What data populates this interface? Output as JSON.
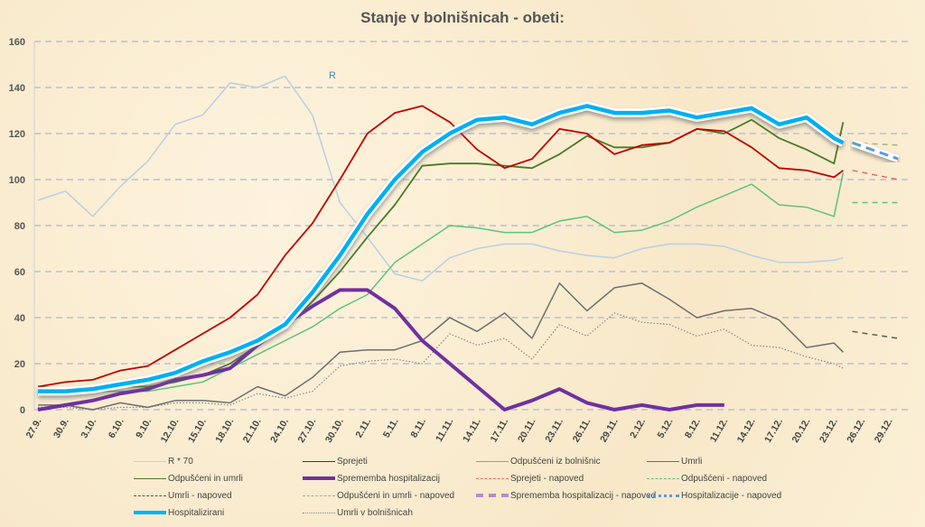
{
  "chart_data": {
    "type": "line",
    "title": "Stanje v bolnišnicah - obeti:",
    "annotation": "R",
    "ylim": [
      0,
      160
    ],
    "yticks": [
      0,
      20,
      40,
      60,
      80,
      100,
      120,
      140,
      160
    ],
    "xticks": [
      "27.9.",
      "30.9.",
      "3.10.",
      "6.10.",
      "9.10.",
      "12.10.",
      "15.10.",
      "18.10.",
      "21.10.",
      "24.10.",
      "27.10.",
      "30.10.",
      "2.11.",
      "5.11.",
      "8.11.",
      "11.11.",
      "14.11.",
      "17.11.",
      "20.11.",
      "23.11.",
      "26.11.",
      "29.11.",
      "2.12.",
      "5.12.",
      "8.12.",
      "11.12.",
      "14.12.",
      "17.12.",
      "20.12.",
      "23.12.",
      "26.12.",
      "29.12."
    ],
    "grid": true,
    "legend_position": "bottom",
    "x": [
      "27.9.",
      "30.9.",
      "3.10.",
      "6.10.",
      "9.10.",
      "12.10.",
      "15.10.",
      "18.10.",
      "21.10.",
      "24.10.",
      "27.10.",
      "30.10.",
      "2.11.",
      "5.11.",
      "8.11.",
      "11.11.",
      "14.11.",
      "17.11.",
      "20.11.",
      "23.11.",
      "26.11.",
      "29.11.",
      "2.12.",
      "5.12.",
      "8.12.",
      "11.12.",
      "14.12.",
      "17.12.",
      "20.12.",
      "23.12.",
      "24.12."
    ],
    "series": [
      {
        "name": "R * 70",
        "color": "#b9d0e2",
        "width": 1.5,
        "dash": "",
        "values": [
          91,
          95,
          84,
          97,
          108,
          124,
          128,
          142,
          140,
          145,
          128,
          90,
          75,
          59,
          56,
          66,
          70,
          72,
          72,
          69,
          67,
          66,
          70,
          72,
          72,
          71,
          67,
          64,
          64,
          65,
          66
        ]
      },
      {
        "name": "Sprejeti",
        "color": "#c00000",
        "width": 1.8,
        "dash": "",
        "values": [
          10,
          12,
          13,
          17,
          19,
          26,
          33,
          40,
          50,
          67,
          81,
          100,
          120,
          129,
          132,
          125,
          113,
          105,
          109,
          122,
          120,
          111,
          115,
          116,
          122,
          121,
          114,
          105,
          104,
          101,
          104
        ]
      },
      {
        "name": "Odpušćeni iz bolnišnic",
        "color": "#5cc47a",
        "width": 1.5,
        "dash": "",
        "values": [
          9,
          9,
          8,
          8,
          8,
          10,
          12,
          18,
          24,
          30,
          36,
          44,
          50,
          64,
          72,
          80,
          79,
          77,
          77,
          82,
          84,
          77,
          78,
          82,
          88,
          93,
          98,
          89,
          88,
          84,
          103
        ]
      },
      {
        "name": "Umrli",
        "color": "#6e6e6e",
        "width": 1.5,
        "dash": "",
        "values": [
          2,
          2,
          0,
          3,
          1,
          4,
          4,
          3,
          10,
          6,
          14,
          25,
          26,
          26,
          30,
          40,
          34,
          42,
          31,
          55,
          43,
          53,
          55,
          48,
          40,
          43,
          44,
          39,
          27,
          29,
          25
        ]
      },
      {
        "name": "Odpušćeni in umrli",
        "color": "#4a7a2a",
        "width": 1.8,
        "dash": "",
        "values": [
          10,
          9,
          9,
          10,
          10,
          12,
          15,
          20,
          28,
          36,
          47,
          60,
          75,
          89,
          106,
          107,
          107,
          106,
          105,
          111,
          119,
          114,
          114,
          116,
          122,
          120,
          126,
          118,
          113,
          107,
          125
        ]
      },
      {
        "name": "Sprememba hospitalizacij",
        "color": "#7030a0",
        "width": 4,
        "dash": "",
        "values": [
          0,
          2,
          4,
          7,
          9,
          13,
          15,
          18,
          28,
          37,
          45,
          52,
          52,
          44,
          30,
          20,
          10,
          0,
          4,
          9,
          3,
          0,
          2,
          0,
          2,
          2,
          null,
          null,
          null,
          null,
          null
        ]
      },
      {
        "name": "Hospitalizirani",
        "color": "#00b0f0",
        "width": 4.5,
        "dash": "",
        "glow": true,
        "values": [
          8,
          8,
          9,
          11,
          13,
          16,
          21,
          25,
          30,
          37,
          51,
          67,
          85,
          100,
          112,
          120,
          126,
          127,
          124,
          129,
          132,
          129,
          129,
          130,
          127,
          129,
          131,
          124,
          127,
          118,
          116
        ]
      },
      {
        "name": "Umrli v bolnišnicah",
        "color": "#888888",
        "width": 1.2,
        "dash": "1.5 2",
        "values": [
          1,
          1,
          0,
          1,
          1,
          3,
          3,
          2,
          7,
          5,
          8,
          19,
          21,
          22,
          20,
          33,
          28,
          31,
          22,
          37,
          32,
          42,
          38,
          37,
          32,
          35,
          28,
          27,
          23,
          20,
          18
        ]
      }
    ],
    "forecast_x": [
      "25.12.",
      "30.12."
    ],
    "forecasts": [
      {
        "name": "Sprejeti - napoved",
        "color": "#e06a6a",
        "width": 1.5,
        "dash": "6 5",
        "values": [
          104,
          100
        ]
      },
      {
        "name": "Odpušćeni - napoved",
        "color": "#5cc47a",
        "width": 1.5,
        "dash": "6 5",
        "values": [
          90,
          90
        ]
      },
      {
        "name": "Umrli - napoved",
        "color": "#5a5a5a",
        "width": 1.5,
        "dash": "6 5",
        "values": [
          34,
          31
        ]
      },
      {
        "name": "Odpušćeni in umrli - napoved",
        "color": "#a8b080",
        "width": 1.5,
        "dash": "6 5",
        "values": [
          116,
          115
        ]
      },
      {
        "name": "Sprememba hospitalizacij - napoved",
        "color": "#b48ccc",
        "width": 4,
        "dash": "6 5",
        "values": []
      },
      {
        "name": "Hospitalizacije - napoved",
        "color": "#5b9bd5",
        "width": 3,
        "dash": "10 6",
        "values": [
          116,
          109
        ]
      }
    ],
    "legend_order": [
      "R * 70",
      "Sprejeti",
      "Odpušćeni iz bolnišnic",
      "Umrli",
      "Odpušćeni in umrli",
      "Sprememba hospitalizacij",
      "Sprejeti - napoved",
      "Odpušćeni - napoved",
      "Umrli - napoved",
      "Odpušćeni in umrli - napoved",
      "Sprememba hospitalizacij - napoved",
      "Hospitalizacije - napoved",
      "Hospitalizirani",
      "Umrli v bolnišnicah"
    ]
  }
}
